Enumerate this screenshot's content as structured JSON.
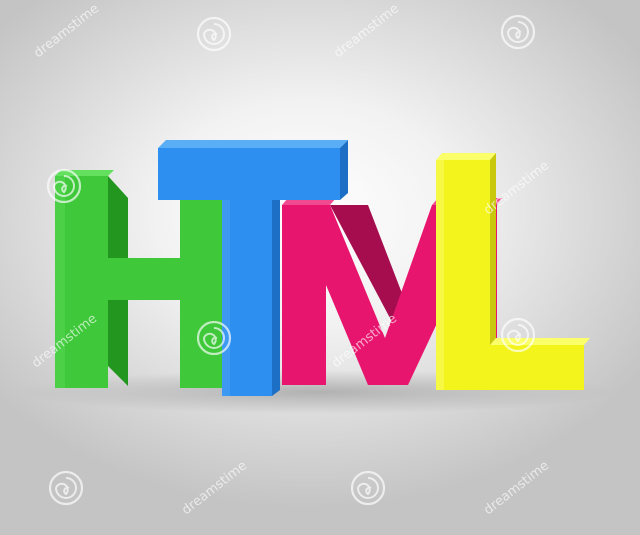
{
  "image": {
    "word": "HTML",
    "letters": [
      {
        "char": "H",
        "color": "#38c233"
      },
      {
        "char": "T",
        "color": "#2b8ff0"
      },
      {
        "char": "M",
        "color": "#e8136c"
      },
      {
        "char": "L",
        "color": "#f2f21a"
      }
    ],
    "watermark_text": "dreamstime",
    "background": "#f4f4f4"
  }
}
